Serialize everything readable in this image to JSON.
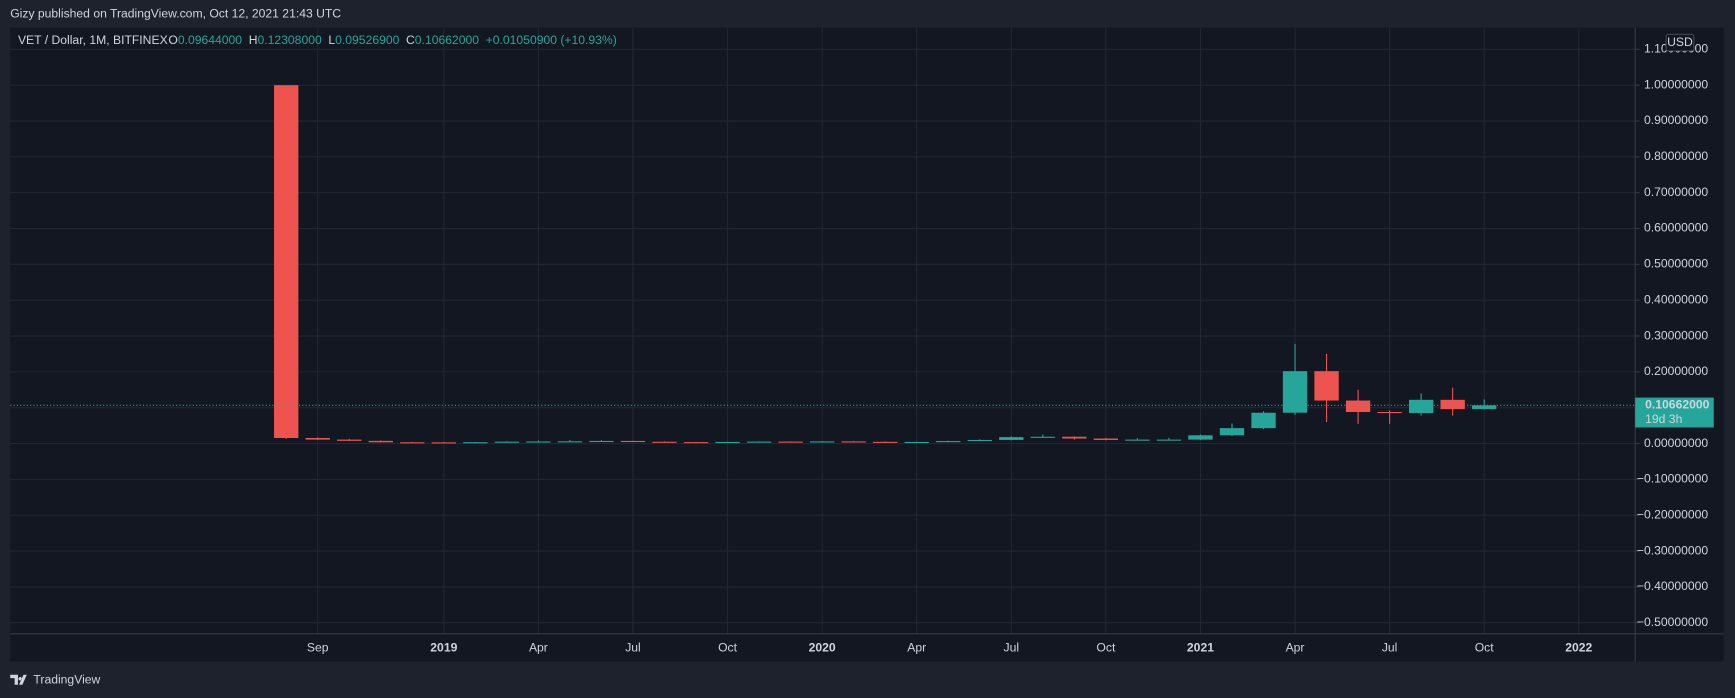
{
  "header": {
    "published": "Gizy published on TradingView.com, Oct 12, 2021 21:43 UTC"
  },
  "footer": {
    "brand": "TradingView"
  },
  "chart_data": {
    "type": "candlestick",
    "title": "VET / Dollar, 1M, BITFINEX",
    "legend": [
      {
        "label": "O",
        "text": "0.09644000"
      },
      {
        "label": "H",
        "text": "0.12308000"
      },
      {
        "label": "L",
        "text": "0.09526900"
      },
      {
        "label": "C",
        "text": "0.10662000"
      }
    ],
    "change": "+0.01050900 (+10.93%)",
    "currency": "USD",
    "last_label": "0.10662000",
    "countdown": "19d 3h",
    "up_color": "#26a69a",
    "down_color": "#ef5350",
    "grid": true,
    "categories": [
      null,
      "Sep",
      null,
      null,
      null,
      "2019",
      null,
      null,
      "Apr",
      null,
      null,
      "Jul",
      null,
      null,
      "Oct",
      null,
      null,
      "2020",
      null,
      null,
      "Apr",
      null,
      null,
      "Jul",
      null,
      null,
      "Oct",
      null,
      null,
      "2021",
      null,
      null,
      "Apr",
      null,
      null,
      "Jul",
      null,
      null,
      "Oct",
      null,
      null,
      "2022"
    ],
    "open": [
      1.0,
      0.0155,
      0.011,
      0.0075,
      0.0035,
      0.0033,
      0.0032,
      0.0038,
      0.0052,
      0.0058,
      0.0063,
      0.0073,
      0.005,
      0.004,
      0.0036,
      0.0045,
      0.0055,
      0.004,
      0.006,
      0.0048,
      0.0032,
      0.0045,
      0.007,
      0.01,
      0.018,
      0.019,
      0.014,
      0.01,
      0.011,
      0.011,
      0.023,
      0.043,
      0.086,
      0.202,
      0.12,
      0.088,
      0.085,
      0.122,
      0.09644,
      null,
      null,
      null
    ],
    "high": [
      1.0,
      0.017,
      0.013,
      0.009,
      0.0045,
      0.0045,
      0.0045,
      0.0065,
      0.0085,
      0.01,
      0.0095,
      0.008,
      0.006,
      0.0045,
      0.005,
      0.006,
      0.006,
      0.007,
      0.0075,
      0.006,
      0.005,
      0.008,
      0.012,
      0.02,
      0.025,
      0.02,
      0.016,
      0.015,
      0.016,
      0.025,
      0.056,
      0.09,
      0.278,
      0.25,
      0.15,
      0.092,
      0.14,
      0.156,
      0.12308,
      null,
      null,
      null
    ],
    "low": [
      0.0131,
      0.01,
      0.007,
      0.003,
      0.0025,
      0.0028,
      0.0028,
      0.0035,
      0.0045,
      0.005,
      0.0055,
      0.004,
      0.0035,
      0.003,
      0.0033,
      0.004,
      0.0035,
      0.0037,
      0.0045,
      0.002,
      0.0028,
      0.004,
      0.0065,
      0.009,
      0.016,
      0.011,
      0.009,
      0.0085,
      0.0095,
      0.01,
      0.021,
      0.04,
      0.08,
      0.06,
      0.055,
      0.055,
      0.078,
      0.078,
      0.095269,
      null,
      null,
      null
    ],
    "close": [
      0.0155,
      0.011,
      0.0075,
      0.0035,
      0.0033,
      0.0032,
      0.0038,
      0.0052,
      0.0058,
      0.0063,
      0.0073,
      0.005,
      0.004,
      0.0036,
      0.0045,
      0.0055,
      0.004,
      0.006,
      0.0048,
      0.0032,
      0.0045,
      0.007,
      0.01,
      0.018,
      0.019,
      0.014,
      0.01,
      0.011,
      0.011,
      0.023,
      0.043,
      0.086,
      0.202,
      0.12,
      0.088,
      0.085,
      0.122,
      0.096,
      0.10662,
      null,
      null,
      null
    ],
    "ylim": [
      -0.531,
      1.1605
    ],
    "yticks": [
      {
        "value": -0.5,
        "label": "−0.50000000"
      },
      {
        "value": -0.4,
        "label": "−0.40000000"
      },
      {
        "value": -0.3,
        "label": "−0.30000000"
      },
      {
        "value": -0.2,
        "label": "−0.20000000"
      },
      {
        "value": -0.1,
        "label": "−0.10000000"
      },
      {
        "value": 0,
        "label": "0.00000000"
      },
      {
        "value": 0.1,
        "label": "0.10000000"
      },
      {
        "value": 0.2,
        "label": "0.20000000"
      },
      {
        "value": 0.3,
        "label": "0.30000000"
      },
      {
        "value": 0.4,
        "label": "0.40000000"
      },
      {
        "value": 0.5,
        "label": "0.50000000"
      },
      {
        "value": 0.6,
        "label": "0.60000000"
      },
      {
        "value": 0.7,
        "label": "0.70000000"
      },
      {
        "value": 0.8,
        "label": "0.80000000"
      },
      {
        "value": 0.9,
        "label": "0.90000000"
      },
      {
        "value": 1,
        "label": "1.00000000"
      },
      {
        "value": 1.1,
        "label": "1.10000000"
      }
    ]
  }
}
